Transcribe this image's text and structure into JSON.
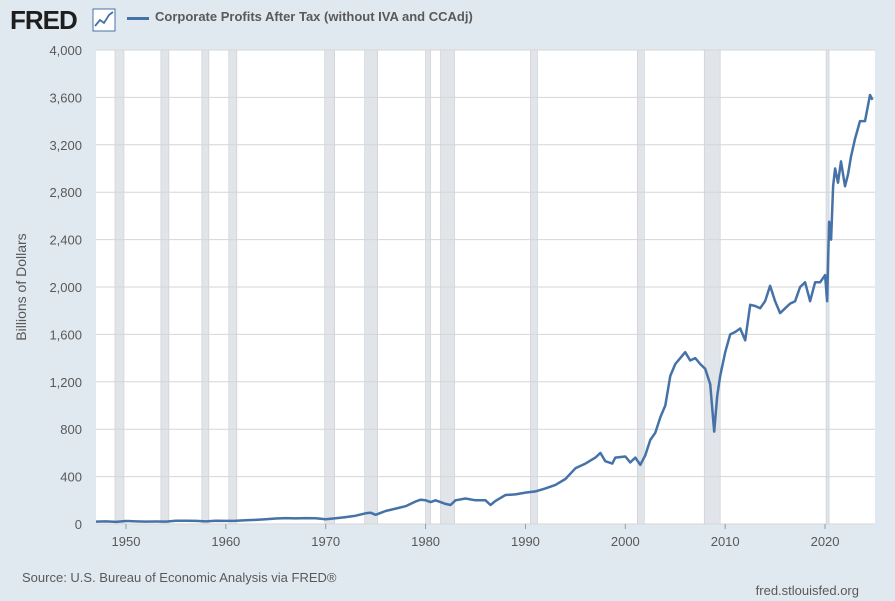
{
  "header": {
    "logo_text": "FRED",
    "logo_icon": "chart-line-icon",
    "series_title": "Corporate Profits After Tax (without IVA and CCAdj)",
    "series_color": "#4572a7"
  },
  "footer": {
    "source": "Source: U.S. Bureau of Economic Analysis via FRED®",
    "url": "fred.stlouisfed.org"
  },
  "colors": {
    "background": "#e1e9f0",
    "plot_background": "#ffffff",
    "recession_shading": "#e1e4e8",
    "gridline": "#d6d6d6"
  },
  "chart_data": {
    "type": "line",
    "title": "",
    "xlabel": "",
    "ylabel": "Billions of Dollars",
    "xlim": [
      1947,
      2025
    ],
    "ylim": [
      0,
      4000
    ],
    "x_ticks": [
      "1950",
      "1960",
      "1970",
      "1980",
      "1990",
      "2000",
      "2010",
      "2020"
    ],
    "y_ticks": [
      "0",
      "400",
      "800",
      "1,200",
      "1,600",
      "2,000",
      "2,400",
      "2,800",
      "3,200",
      "3,600",
      "4,000"
    ],
    "grid": "horizontal",
    "recessions": [
      [
        1948.9,
        1949.8
      ],
      [
        1953.5,
        1954.3
      ],
      [
        1957.6,
        1958.3
      ],
      [
        1960.3,
        1961.1
      ],
      [
        1969.9,
        1970.9
      ],
      [
        1973.9,
        1975.2
      ],
      [
        1980.0,
        1980.5
      ],
      [
        1981.5,
        1982.9
      ],
      [
        1990.5,
        1991.2
      ],
      [
        2001.2,
        2001.9
      ],
      [
        2007.9,
        2009.5
      ],
      [
        2020.1,
        2020.4
      ]
    ],
    "series": [
      {
        "name": "Corporate Profits After Tax (without IVA and CCAdj)",
        "x": [
          1947,
          1948,
          1949,
          1950,
          1951,
          1952,
          1953,
          1954,
          1955,
          1956,
          1957,
          1958,
          1959,
          1960,
          1961,
          1962,
          1963,
          1964,
          1965,
          1966,
          1967,
          1968,
          1969,
          1970,
          1971,
          1972,
          1973,
          1974,
          1974.5,
          1975,
          1976,
          1977,
          1978,
          1979,
          1979.5,
          1980,
          1980.5,
          1981,
          1982,
          1982.5,
          1983,
          1984,
          1985,
          1986,
          1986.5,
          1987,
          1988,
          1989,
          1990,
          1991,
          1992,
          1993,
          1994,
          1995,
          1996,
          1997,
          1997.5,
          1998,
          1998.7,
          1999,
          2000,
          2000.5,
          2001,
          2001.5,
          2002,
          2002.5,
          2003,
          2003.5,
          2004,
          2004.5,
          2005,
          2005.5,
          2006,
          2006.5,
          2007,
          2007.5,
          2008,
          2008.5,
          2008.9,
          2009.2,
          2009.5,
          2010,
          2010.5,
          2011,
          2011.5,
          2012,
          2012.5,
          2013,
          2013.5,
          2014,
          2014.5,
          2015,
          2015.5,
          2016,
          2016.5,
          2017,
          2017.5,
          2018,
          2018.5,
          2019,
          2019.5,
          2020,
          2020.2,
          2020.4,
          2020.6,
          2020.8,
          2021,
          2021.3,
          2021.6,
          2022,
          2022.3,
          2022.6,
          2023,
          2023.5,
          2024,
          2024.5,
          2024.75
        ],
        "values": [
          20,
          22,
          18,
          25,
          22,
          20,
          21,
          20,
          27,
          27,
          26,
          22,
          28,
          26,
          27,
          31,
          35,
          40,
          46,
          50,
          47,
          50,
          48,
          40,
          48,
          58,
          70,
          90,
          95,
          78,
          110,
          130,
          150,
          190,
          205,
          200,
          185,
          200,
          170,
          160,
          200,
          215,
          200,
          200,
          160,
          195,
          245,
          250,
          265,
          275,
          300,
          330,
          380,
          470,
          510,
          560,
          600,
          530,
          510,
          560,
          570,
          520,
          560,
          500,
          580,
          710,
          770,
          900,
          1000,
          1250,
          1350,
          1400,
          1450,
          1380,
          1400,
          1350,
          1310,
          1180,
          780,
          1080,
          1250,
          1450,
          1600,
          1620,
          1650,
          1550,
          1850,
          1840,
          1820,
          1880,
          2010,
          1880,
          1780,
          1820,
          1860,
          1880,
          2000,
          2040,
          1880,
          2040,
          2040,
          2100,
          1880,
          2550,
          2400,
          2850,
          3000,
          2880,
          3060,
          2850,
          2950,
          3100,
          3250,
          3400,
          3400,
          3620,
          3580
        ]
      }
    ]
  }
}
